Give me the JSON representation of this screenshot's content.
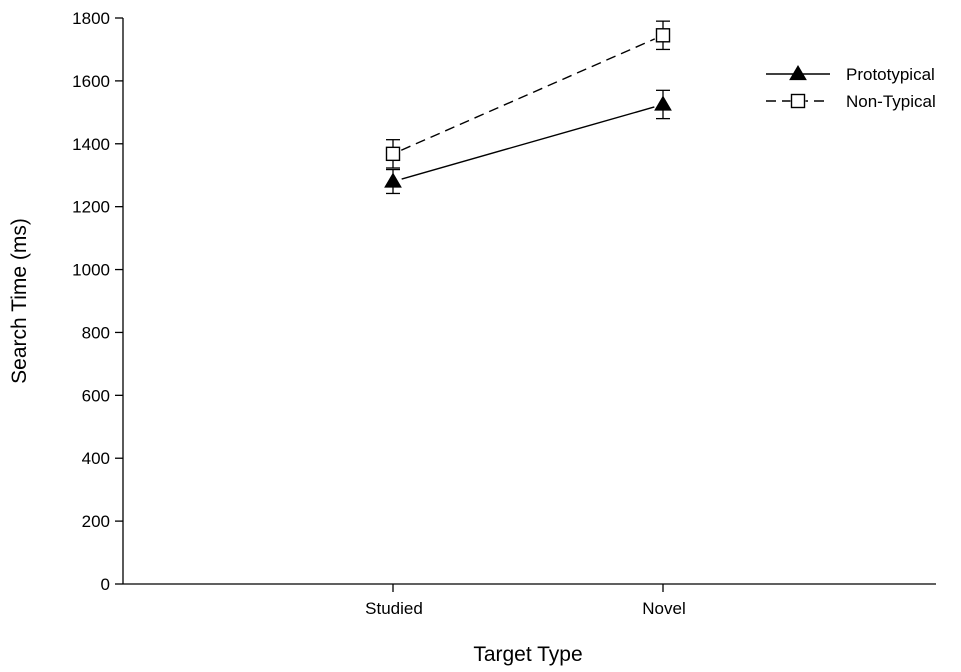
{
  "chart_data": {
    "type": "line",
    "xlabel": "Target Type",
    "ylabel": "Search Time (ms)",
    "categories": [
      "Studied",
      "Novel"
    ],
    "ylim": [
      0,
      1800
    ],
    "yticks": [
      0,
      200,
      400,
      600,
      800,
      1000,
      1200,
      1400,
      1600,
      1800
    ],
    "grid": false,
    "legend_position": "top-right",
    "series": [
      {
        "name": "Prototypical",
        "values": [
          1280,
          1525
        ],
        "errors": [
          38,
          45
        ],
        "marker": "filled-triangle",
        "line_style": "solid",
        "color": "#000000"
      },
      {
        "name": "Non-Typical",
        "values": [
          1368,
          1745
        ],
        "errors": [
          45,
          45
        ],
        "marker": "open-square",
        "line_style": "dashed",
        "color": "#000000"
      }
    ]
  }
}
